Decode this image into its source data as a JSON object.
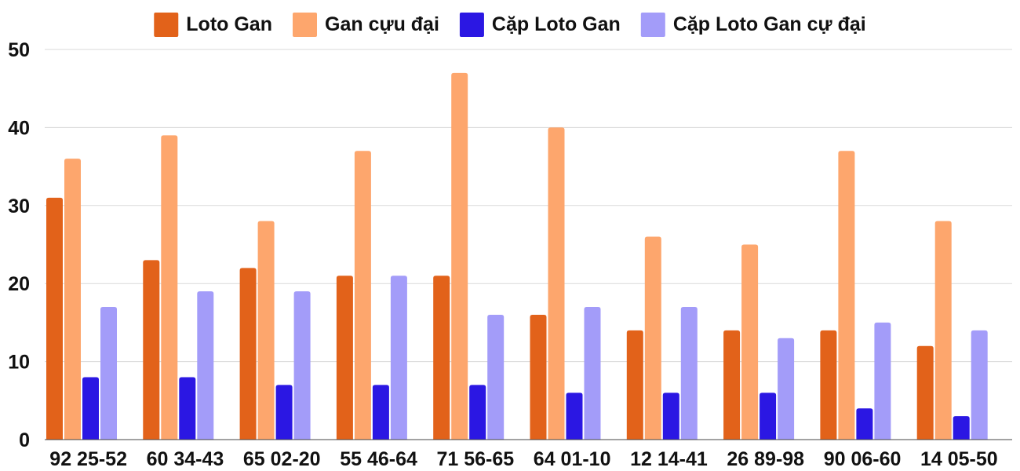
{
  "chart_data": {
    "type": "bar",
    "title": "",
    "xlabel": "",
    "ylabel": "",
    "ylim": [
      0,
      50
    ],
    "yticks": [
      0,
      10,
      20,
      30,
      40,
      50
    ],
    "grid": true,
    "legend_position": "top",
    "categories": [
      "92 25-52",
      "60 34-43",
      "65 02-20",
      "55 46-64",
      "71 56-65",
      "64 01-10",
      "12 14-41",
      "26 89-98",
      "90 06-60",
      "14 05-50"
    ],
    "series": [
      {
        "name": "Loto Gan",
        "color": "#e2621a",
        "values": [
          31,
          23,
          22,
          21,
          21,
          16,
          14,
          14,
          14,
          12
        ]
      },
      {
        "name": "Gan cựu đại",
        "color": "#fda66d",
        "values": [
          36,
          39,
          28,
          37,
          47,
          40,
          26,
          25,
          37,
          28
        ]
      },
      {
        "name": "Cặp Loto Gan",
        "color": "#2b17e3",
        "values": [
          8,
          8,
          7,
          7,
          7,
          6,
          6,
          6,
          4,
          3
        ]
      },
      {
        "name": "Cặp Loto Gan cự đại",
        "color": "#a39cf9",
        "values": [
          17,
          19,
          19,
          21,
          16,
          17,
          17,
          13,
          15,
          14
        ]
      }
    ]
  }
}
